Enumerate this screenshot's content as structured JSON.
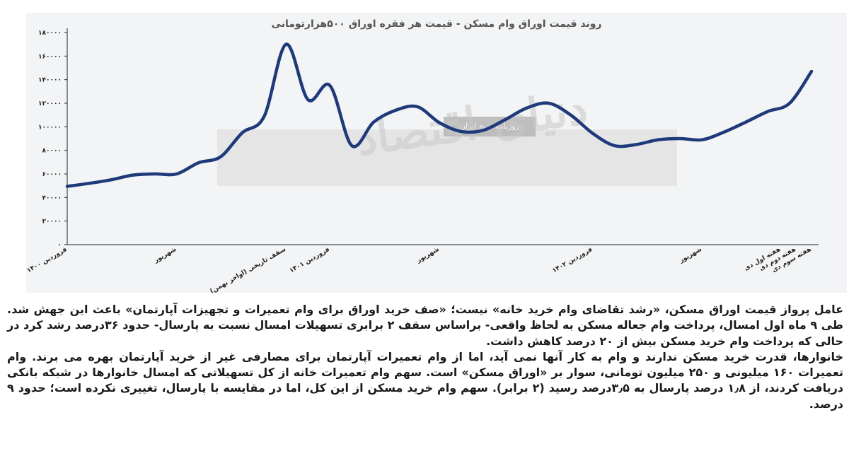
{
  "chart_data": {
    "type": "line",
    "title": "روند قیمت اوراق وام مسکن - قیمت هر فقره اوراق ۵۰۰هزارتومانی",
    "xlabel": "",
    "ylabel": "",
    "ylim": [
      0,
      180000
    ],
    "yticks": [
      "۰",
      "۲۰۰۰۰",
      "۴۰۰۰۰",
      "۶۰۰۰۰",
      "۸۰۰۰۰",
      "۱۰۰۰۰۰",
      "۱۲۰۰۰۰",
      "۱۴۰۰۰۰",
      "۱۶۰۰۰۰",
      "۱۸۰۰۰۰"
    ],
    "ytick_values": [
      0,
      20000,
      40000,
      60000,
      80000,
      100000,
      120000,
      140000,
      160000,
      180000
    ],
    "xticks": [
      {
        "label": "فروردین ۱۴۰۰",
        "x": 0
      },
      {
        "label": "شهریور",
        "x": 5
      },
      {
        "label": "سقف تاریخی (اواخر بهمن)",
        "x": 10
      },
      {
        "label": "فروردین ۱۴۰۱",
        "x": 12
      },
      {
        "label": "شهریور",
        "x": 17
      },
      {
        "label": "فروردین ۱۴۰۲",
        "x": 24
      },
      {
        "label": "شهریور",
        "x": 29
      },
      {
        "label": "هفته اول دی",
        "x": 32.6
      },
      {
        "label": "هفته دوم دی",
        "x": 33.3
      },
      {
        "label": "هفته سوم دی",
        "x": 34
      }
    ],
    "grid": false,
    "legend": "none",
    "series": [
      {
        "color": "#1f3a7a",
        "points": [
          [
            0,
            49500
          ],
          [
            1,
            52000
          ],
          [
            2,
            55000
          ],
          [
            3,
            59000
          ],
          [
            4,
            60000
          ],
          [
            5,
            60000
          ],
          [
            6,
            69500
          ],
          [
            7,
            74500
          ],
          [
            8,
            95000
          ],
          [
            9,
            109000
          ],
          [
            10,
            170000
          ],
          [
            11,
            123000
          ],
          [
            12,
            135000
          ],
          [
            13,
            84000
          ],
          [
            14,
            104000
          ],
          [
            15,
            114000
          ],
          [
            16,
            117000
          ],
          [
            17,
            103500
          ],
          [
            18,
            96000
          ],
          [
            19,
            97000
          ],
          [
            20,
            106000
          ],
          [
            21,
            116000
          ],
          [
            22,
            120000
          ],
          [
            23,
            110000
          ],
          [
            24,
            94500
          ],
          [
            25,
            84000
          ],
          [
            26,
            85000
          ],
          [
            27,
            89000
          ],
          [
            28,
            90000
          ],
          [
            29,
            89000
          ],
          [
            30,
            95500
          ],
          [
            31,
            104000
          ],
          [
            32,
            113000
          ],
          [
            33,
            120000
          ],
          [
            34,
            147000
          ]
        ]
      }
    ]
  },
  "watermark": {
    "brand": "دنیای اقتصاد",
    "sub": "روزنامه صبح ایران"
  },
  "article": {
    "paragraphs": [
      "عامل پرواز قیمت اوراق مسکن، «رشد تقاضای وام خرید خانه» نیست؛ «صف خرید اوراق برای وام تعمیرات و تجهیزات آپارتمان» باعث این جهش شد. طی ۹ ماه اول امسال، پرداخت وام جعاله مسکن به لحاظ واقعی- براساس سقف ۲ برابری تسهیلات امسال نسبت به پارسال- حدود ۳۶درصد رشد کرد در حالی که پرداخت وام خرید مسکن بیش از ۲۰ درصد کاهش داشت.",
      "خانوارها، قدرت خرید مسکن ندارند و وام به کار آنها نمی آید، اما از وام تعمیرات آپارتمان برای مصارفی غیر از خرید آپارتمان بهره می برند. وام تعمیرات ۱۶۰ میلیونی و ۲۵۰ میلیون تومانی، سوار بر «اوراق مسکن» است. سهم وام تعمیرات خانه از کل تسهیلاتی که امسال خانوارها در شبکه بانکی دریافت کردند، از ۱٫۸ درصد پارسال به ۳٫۵درصد رسید (۲ برابر). سهم وام خرید مسکن از این کل، اما در مقایسه با پارسال، تغییری نکرده است؛ حدود ۹ درصد."
    ]
  }
}
